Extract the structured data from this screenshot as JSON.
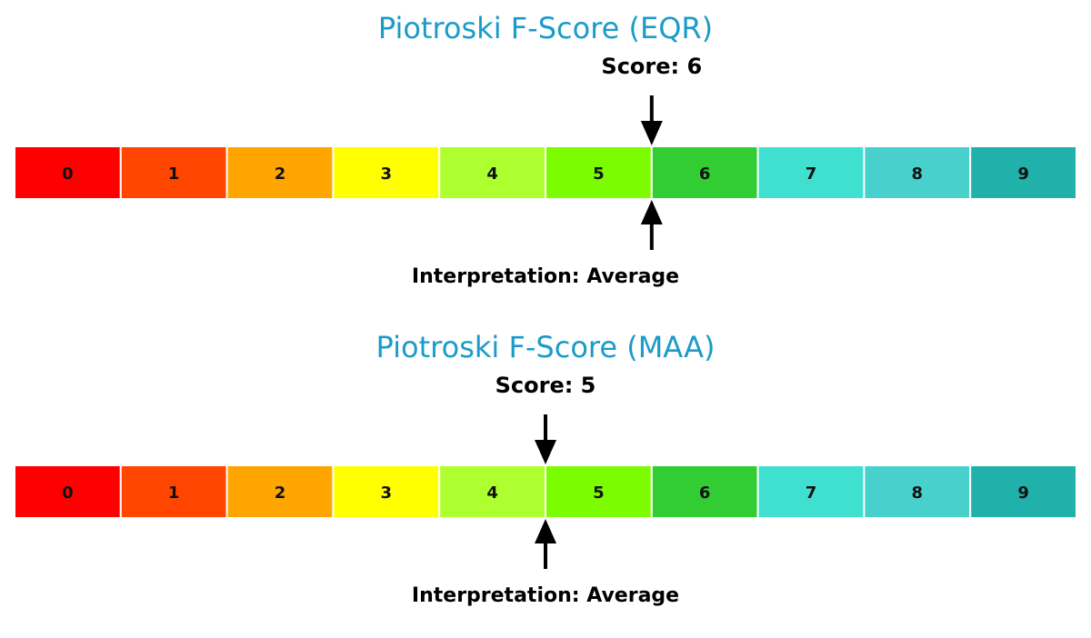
{
  "colors": {
    "title": "#1a9bc9",
    "arrow": "#000000",
    "divider": "#ffffff"
  },
  "chart_data": [
    {
      "type": "gauge",
      "title": "Piotroski F-Score (EQR)",
      "score_label": "Score: 6",
      "interpretation_label": "Interpretation: Average",
      "score": 6,
      "range": [
        0,
        9
      ],
      "categories": [
        "0",
        "1",
        "2",
        "3",
        "4",
        "5",
        "6",
        "7",
        "8",
        "9"
      ],
      "segment_colors": [
        "#ff0000",
        "#ff4500",
        "#ffa500",
        "#ffff00",
        "#adff2f",
        "#7cfc00",
        "#32cd32",
        "#40e0d0",
        "#48d1cc",
        "#20b2aa"
      ]
    },
    {
      "type": "gauge",
      "title": "Piotroski F-Score (MAA)",
      "score_label": "Score: 5",
      "interpretation_label": "Interpretation: Average",
      "score": 5,
      "range": [
        0,
        9
      ],
      "categories": [
        "0",
        "1",
        "2",
        "3",
        "4",
        "5",
        "6",
        "7",
        "8",
        "9"
      ],
      "segment_colors": [
        "#ff0000",
        "#ff4500",
        "#ffa500",
        "#ffff00",
        "#adff2f",
        "#7cfc00",
        "#32cd32",
        "#40e0d0",
        "#48d1cc",
        "#20b2aa"
      ]
    }
  ]
}
